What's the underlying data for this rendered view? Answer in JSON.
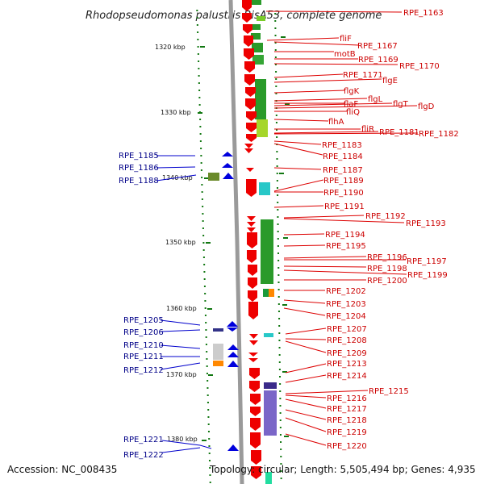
{
  "title": "Rhodopseudomonas palustris BisA53, complete genome",
  "accession": "Accession: NC_008435",
  "topology": "Topology: circular; Length: 5,505,494 bp; Genes: 4,935",
  "colors": {
    "forward_gene": "#ee0000",
    "reverse_gene": "#0000dd",
    "backbone": "#9a9a9a",
    "tick": "#117711",
    "right_label": "#cc0000",
    "left_label": "#000088"
  },
  "ticks": [
    "1320 kbp",
    "1330 kbp",
    "1340 kbp",
    "1350 kbp",
    "1360 kbp",
    "1370 kbp",
    "1380 kbp"
  ],
  "right_labels": [
    "RPE_1163",
    "fliF",
    "RPE_1167",
    "motB",
    "RPE_1169",
    "RPE_1170",
    "RPE_1171",
    "flgE",
    "flgK",
    "flgL",
    "flaF",
    "flgT",
    "flgD",
    "fliQ",
    "flhA",
    "fliR",
    "RPE_1181",
    "RPE_1182",
    "RPE_1183",
    "RPE_1184",
    "RPE_1187",
    "RPE_1189",
    "RPE_1190",
    "RPE_1191",
    "RPE_1192",
    "RPE_1193",
    "RPE_1194",
    "RPE_1195",
    "RPE_1196",
    "RPE_1197",
    "RPE_1198",
    "RPE_1199",
    "RPE_1200",
    "RPE_1202",
    "RPE_1203",
    "RPE_1204",
    "RPE_1207",
    "RPE_1208",
    "RPE_1209",
    "RPE_1213",
    "RPE_1214",
    "RPE_1215",
    "RPE_1216",
    "RPE_1217",
    "RPE_1218",
    "RPE_1219",
    "RPE_1220"
  ],
  "left_labels": [
    "RPE_1185",
    "RPE_1186",
    "RPE_1188",
    "RPE_1205",
    "RPE_1206",
    "RPE_1210",
    "RPE_1211",
    "RPE_1212",
    "RPE_1221",
    "RPE_1222"
  ]
}
